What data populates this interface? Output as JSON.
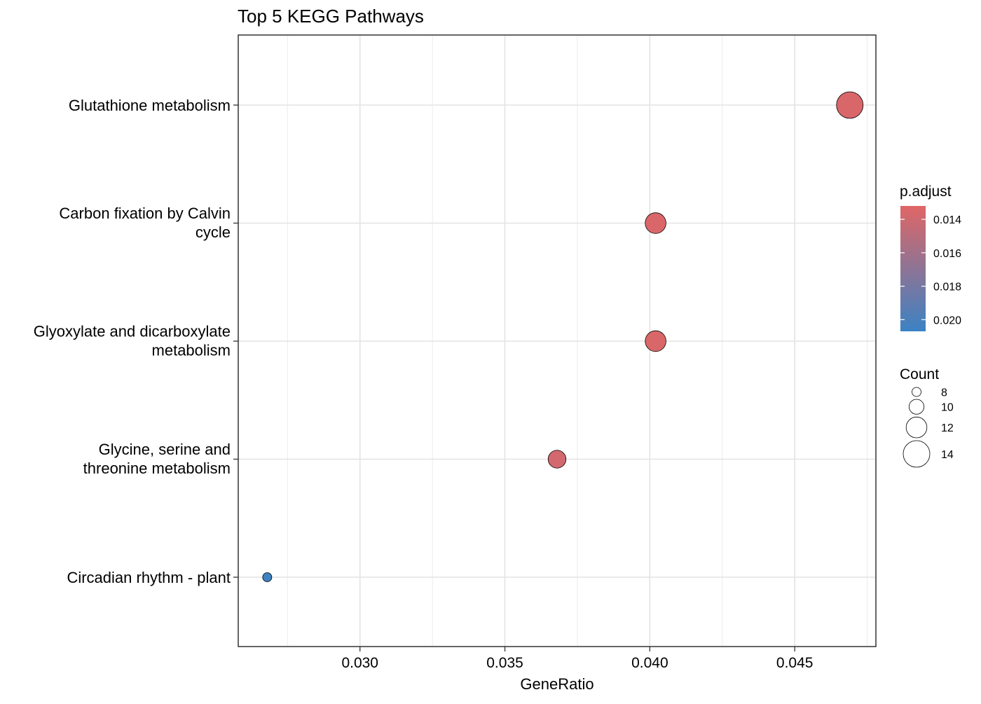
{
  "chart_data": {
    "type": "scatter",
    "title": "Top 5 KEGG Pathways",
    "xlabel": "GeneRatio",
    "ylabel": "",
    "xlim": [
      0.0258,
      0.0478
    ],
    "x_ticks": [
      0.03,
      0.035,
      0.04,
      0.045
    ],
    "x_tick_labels": [
      "0.030",
      "0.035",
      "0.040",
      "0.045"
    ],
    "grid": true,
    "legend_position": "right",
    "categories": [
      [
        "Glutathione metabolism"
      ],
      [
        "Carbon fixation by Calvin",
        "cycle"
      ],
      [
        "Glyoxylate and dicarboxylate",
        "metabolism"
      ],
      [
        "Glycine, serine and",
        "threonine metabolism"
      ],
      [
        "Circadian rhythm - plant"
      ]
    ],
    "points": [
      {
        "x": 0.0469,
        "count": 14,
        "p_adjust": 0.0135
      },
      {
        "x": 0.0402,
        "count": 12,
        "p_adjust": 0.0135
      },
      {
        "x": 0.0402,
        "count": 12,
        "p_adjust": 0.0135
      },
      {
        "x": 0.0368,
        "count": 11,
        "p_adjust": 0.0138
      },
      {
        "x": 0.0268,
        "count": 8,
        "p_adjust": 0.0205
      }
    ],
    "color_legend": {
      "title": "p.adjust",
      "low_color": "#E06666",
      "high_color": "#3B82C4",
      "range": [
        0.0132,
        0.0207
      ],
      "ticks": [
        0.014,
        0.016,
        0.018,
        0.02
      ],
      "tick_labels": [
        "0.014",
        "0.016",
        "0.018",
        "0.020"
      ]
    },
    "size_legend": {
      "title": "Count",
      "values": [
        8,
        10,
        12,
        14
      ],
      "labels": [
        "8",
        "10",
        "12",
        "14"
      ]
    }
  }
}
